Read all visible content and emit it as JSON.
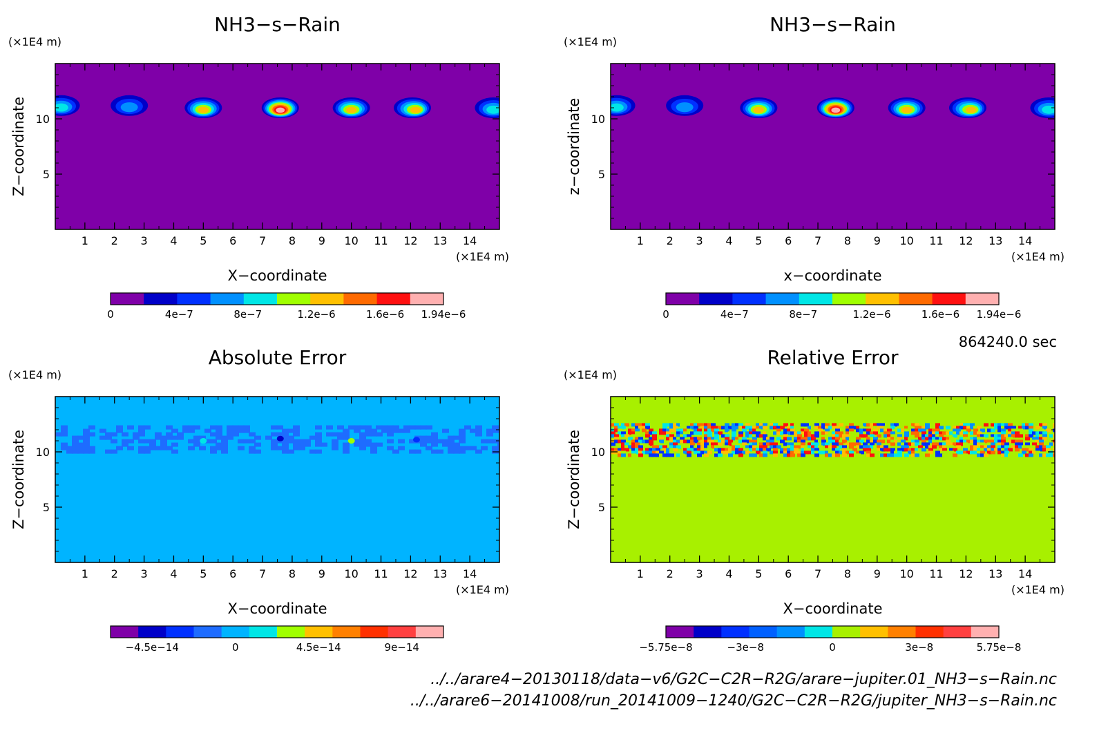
{
  "chart_data": [
    {
      "type": "heatmap",
      "title": "NH3−s−Rain",
      "xlabel": "X−coordinate",
      "ylabel": "Z−coordinate",
      "x_unit": "(×1E4 m)",
      "y_unit": "(×1E4 m)",
      "xlim": [
        0,
        15
      ],
      "ylim": [
        0,
        15
      ],
      "xticks": [
        "1",
        "2",
        "3",
        "4",
        "5",
        "6",
        "7",
        "8",
        "9",
        "10",
        "11",
        "12",
        "13",
        "14"
      ],
      "yticks": [
        "5",
        "10"
      ],
      "background_color": "#7f00a8",
      "features": [
        {
          "x": 0.2,
          "z": 11.2,
          "peak": 8e-07
        },
        {
          "x": 2.5,
          "z": 11.2,
          "peak": 6e-07
        },
        {
          "x": 5.0,
          "z": 11.0,
          "peak": 1.3e-06
        },
        {
          "x": 7.6,
          "z": 11.0,
          "peak": 1.9e-06
        },
        {
          "x": 10.0,
          "z": 11.0,
          "peak": 1.3e-06
        },
        {
          "x": 12.2,
          "z": 11.0,
          "peak": 1.2e-06
        },
        {
          "x": 14.8,
          "z": 11.0,
          "peak": 8e-07
        }
      ],
      "colorbar": {
        "colors": [
          "#7f00a8",
          "#0000c8",
          "#0030ff",
          "#0090ff",
          "#00e6e6",
          "#a0ff00",
          "#ffc000",
          "#ff6a00",
          "#ff1010",
          "#ffb0b0"
        ],
        "ticks": [
          {
            "label": "0",
            "value": 0
          },
          {
            "label": "4e−7",
            "value": 4e-07
          },
          {
            "label": "8e−7",
            "value": 8e-07
          },
          {
            "label": "1.2e−6",
            "value": 1.2e-06
          },
          {
            "label": "1.6e−6",
            "value": 1.6e-06
          },
          {
            "label": "1.94e−6",
            "value": 1.94e-06
          }
        ],
        "range": [
          0,
          1.94e-06
        ]
      }
    },
    {
      "type": "heatmap",
      "title": "NH3−s−Rain",
      "xlabel": "x−coordinate",
      "ylabel": "z−coordinate",
      "x_unit": "(×1E4 m)",
      "y_unit": "(×1E4 m)",
      "xlim": [
        0,
        15
      ],
      "ylim": [
        0,
        15
      ],
      "xticks": [
        "1",
        "2",
        "3",
        "4",
        "5",
        "6",
        "7",
        "8",
        "9",
        "10",
        "11",
        "12",
        "13",
        "14"
      ],
      "yticks": [
        "5",
        "10"
      ],
      "background_color": "#7f00a8",
      "features": [
        {
          "x": 0.2,
          "z": 11.2,
          "peak": 8e-07
        },
        {
          "x": 2.5,
          "z": 11.2,
          "peak": 6e-07
        },
        {
          "x": 5.0,
          "z": 11.0,
          "peak": 1.3e-06
        },
        {
          "x": 7.6,
          "z": 11.0,
          "peak": 1.9e-06
        },
        {
          "x": 10.0,
          "z": 11.0,
          "peak": 1.3e-06
        },
        {
          "x": 12.2,
          "z": 11.0,
          "peak": 1.2e-06
        },
        {
          "x": 14.8,
          "z": 11.0,
          "peak": 8e-07
        }
      ],
      "colorbar": {
        "colors": [
          "#7f00a8",
          "#0000c8",
          "#0030ff",
          "#0090ff",
          "#00e6e6",
          "#a0ff00",
          "#ffc000",
          "#ff6a00",
          "#ff1010",
          "#ffb0b0"
        ],
        "ticks": [
          {
            "label": "0",
            "value": 0
          },
          {
            "label": "4e−7",
            "value": 4e-07
          },
          {
            "label": "8e−7",
            "value": 8e-07
          },
          {
            "label": "1.2e−6",
            "value": 1.2e-06
          },
          {
            "label": "1.6e−6",
            "value": 1.6e-06
          },
          {
            "label": "1.94e−6",
            "value": 1.94e-06
          }
        ],
        "range": [
          0,
          1.94e-06
        ]
      }
    },
    {
      "type": "heatmap",
      "title": "Absolute Error",
      "xlabel": "X−coordinate",
      "ylabel": "Z−coordinate",
      "x_unit": "(×1E4 m)",
      "y_unit": "(×1E4 m)",
      "xlim": [
        0,
        15
      ],
      "ylim": [
        0,
        15
      ],
      "xticks": [
        "1",
        "2",
        "3",
        "4",
        "5",
        "6",
        "7",
        "8",
        "9",
        "10",
        "11",
        "12",
        "13",
        "14"
      ],
      "yticks": [
        "5",
        "10"
      ],
      "background_color": "#00b4ff",
      "noise_band": {
        "z_min": 10.0,
        "z_max": 12.4,
        "colors": [
          "#1e6cff",
          "#00b4ff"
        ]
      },
      "spots": [
        {
          "x": 5.0,
          "z": 11.0,
          "color": "#00e6e6"
        },
        {
          "x": 7.6,
          "z": 11.2,
          "color": "#0000c8"
        },
        {
          "x": 10.0,
          "z": 11.0,
          "color": "#a0ff00"
        },
        {
          "x": 12.2,
          "z": 11.1,
          "color": "#0030ff"
        }
      ],
      "colorbar": {
        "colors": [
          "#7f00a8",
          "#0000c8",
          "#0030ff",
          "#1e6cff",
          "#00b4ff",
          "#00e6e6",
          "#a0ff00",
          "#ffc000",
          "#ff8000",
          "#ff3000",
          "#ff4040",
          "#ffb0b0"
        ],
        "ticks": [
          {
            "label": "−4.5e−14",
            "value": -4.5e-14
          },
          {
            "label": "0",
            "value": 0
          },
          {
            "label": "4.5e−14",
            "value": 4.5e-14
          },
          {
            "label": "9e−14",
            "value": 9e-14
          }
        ],
        "range": [
          -6.75e-14,
          1.125e-13
        ]
      }
    },
    {
      "type": "heatmap",
      "title": "Relative Error",
      "xlabel": "X−coordinate",
      "ylabel": "Z−coordinate",
      "x_unit": "(×1E4 m)",
      "y_unit": "(×1E4 m)",
      "xlim": [
        0,
        15
      ],
      "ylim": [
        0,
        15
      ],
      "xticks": [
        "1",
        "2",
        "3",
        "4",
        "5",
        "6",
        "7",
        "8",
        "9",
        "10",
        "11",
        "12",
        "13",
        "14"
      ],
      "yticks": [
        "5",
        "10"
      ],
      "background_color": "#a8f000",
      "noise_band": {
        "z_min": 9.8,
        "z_max": 12.6,
        "colors": [
          "#0030ff",
          "#0090ff",
          "#00e6e6",
          "#a8f000",
          "#ffc000",
          "#ff6a00",
          "#ff1010"
        ]
      },
      "colorbar": {
        "colors": [
          "#7f00a8",
          "#0000c8",
          "#0030ff",
          "#0060ff",
          "#0090ff",
          "#00e6e6",
          "#a8f000",
          "#ffc000",
          "#ff8000",
          "#ff3000",
          "#ff4040",
          "#ffb0b0"
        ],
        "ticks": [
          {
            "label": "−5.75e−8",
            "value": -5.75e-08
          },
          {
            "label": "−3e−8",
            "value": -3e-08
          },
          {
            "label": "0",
            "value": 0
          },
          {
            "label": "3e−8",
            "value": 3e-08
          },
          {
            "label": "5.75e−8",
            "value": 5.75e-08
          }
        ],
        "range": [
          -5.75e-08,
          5.75e-08
        ]
      }
    }
  ],
  "time_label": "864240.0 sec",
  "file_lines": [
    "../../arare4−20130118/data−v6/G2C−C2R−R2G/arare−jupiter.01_NH3−s−Rain.nc",
    "../../arare6−20141008/run_20141009−1240/G2C−C2R−R2G/jupiter_NH3−s−Rain.nc"
  ]
}
